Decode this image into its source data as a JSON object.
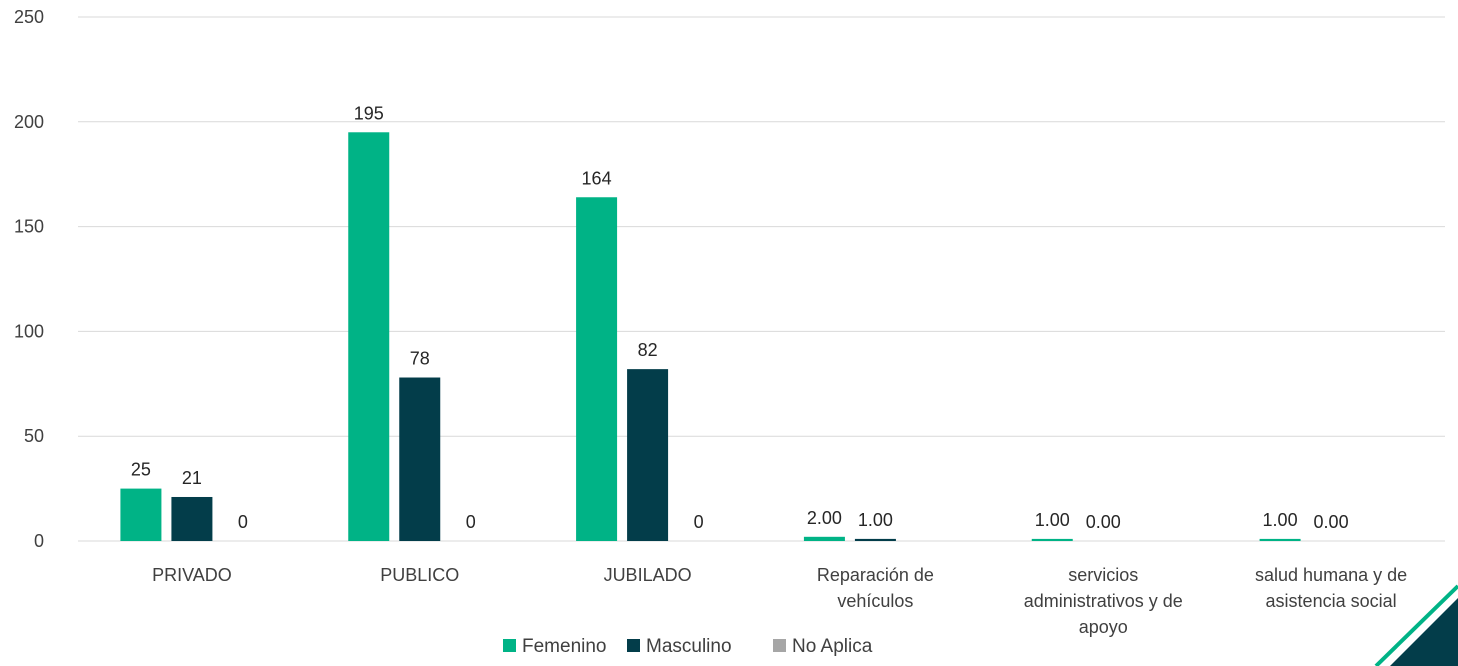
{
  "chart_data": {
    "type": "bar",
    "title": "",
    "xlabel": "",
    "ylabel": "",
    "ylim": [
      0,
      250
    ],
    "yticks": [
      0,
      50,
      100,
      150,
      200,
      250
    ],
    "grid": true,
    "legend_position": "bottom",
    "categories": [
      [
        "PRIVADO"
      ],
      [
        "PUBLICO"
      ],
      [
        "JUBILADO"
      ],
      [
        "Reparación de",
        "vehículos"
      ],
      [
        "servicios",
        "administrativos y de",
        "apoyo"
      ],
      [
        "salud humana y de",
        "asistencia social"
      ]
    ],
    "series": [
      {
        "name": "Femenino",
        "color": "#00b386",
        "values": [
          25,
          195,
          164,
          2,
          1,
          1
        ],
        "labels": [
          "25",
          "195",
          "164",
          "2.00",
          "1.00",
          "1.00"
        ]
      },
      {
        "name": "Masculino",
        "color": "#033d4a",
        "values": [
          21,
          78,
          82,
          1,
          0,
          0
        ],
        "labels": [
          "21",
          "78",
          "82",
          "1.00",
          "0.00",
          "0.00"
        ]
      },
      {
        "name": "No Aplica",
        "color": "#a6a6a6",
        "values": [
          0,
          0,
          0,
          null,
          null,
          null
        ],
        "labels": [
          "0",
          "0",
          "0",
          null,
          null,
          null
        ]
      }
    ]
  },
  "decoration": {
    "corner_color": "#033d4a",
    "corner_accent": "#00b386"
  }
}
